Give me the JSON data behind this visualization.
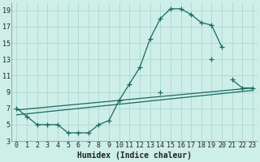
{
  "xlabel": "Humidex (Indice chaleur)",
  "background_color": "#ceeee8",
  "grid_color": "#aed8d2",
  "line_color": "#1a6b60",
  "xlim": [
    -0.5,
    23.5
  ],
  "ylim": [
    3,
    20
  ],
  "xticks": [
    0,
    1,
    2,
    3,
    4,
    5,
    6,
    7,
    8,
    9,
    10,
    11,
    12,
    13,
    14,
    15,
    16,
    17,
    18,
    19,
    20,
    21,
    22,
    23
  ],
  "yticks": [
    3,
    5,
    7,
    9,
    11,
    13,
    15,
    17,
    19
  ],
  "line1_x": [
    0,
    1,
    2,
    3,
    4,
    5,
    6,
    7,
    8,
    9,
    10,
    11,
    12,
    13,
    14,
    15,
    16,
    17,
    18,
    19,
    20,
    21,
    22,
    23
  ],
  "line1_y": [
    7,
    6,
    5,
    5,
    5,
    4,
    4,
    4,
    5,
    5.5,
    8,
    10,
    12,
    15.5,
    18,
    19.2,
    19.2,
    18.5,
    17.5,
    17.2,
    14.5,
    null,
    null,
    null
  ],
  "line2_x": [
    0,
    1,
    2,
    3,
    4,
    5,
    6,
    7,
    8,
    9,
    10,
    11,
    12,
    13,
    14,
    15,
    16,
    17,
    18,
    19,
    20,
    21,
    22,
    23
  ],
  "line2_y": [
    null,
    null,
    null,
    null,
    null,
    null,
    null,
    null,
    null,
    null,
    8,
    null,
    null,
    null,
    9,
    null,
    null,
    null,
    null,
    13,
    null,
    10.5,
    9.5,
    9.5
  ],
  "line3_x": [
    0,
    23
  ],
  "line3_y": [
    6.8,
    9.5
  ],
  "line4_x": [
    0,
    23
  ],
  "line4_y": [
    6.2,
    9.2
  ],
  "marker": "+",
  "markersize": 4,
  "linewidth": 0.9,
  "tick_fontsize": 6,
  "xlabel_fontsize": 7
}
